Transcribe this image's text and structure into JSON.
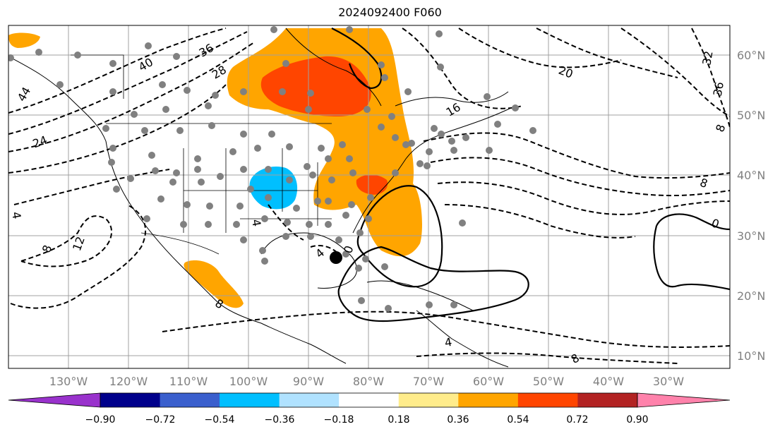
{
  "title": "2024092400 F060",
  "map": {
    "lon_labels": [
      "130°W",
      "120°W",
      "110°W",
      "100°W",
      "90°W",
      "80°W",
      "70°W",
      "60°W",
      "50°W",
      "40°W",
      "30°W"
    ],
    "lat_labels": [
      "60°N",
      "50°N",
      "40°N",
      "30°N",
      "20°N",
      "10°N"
    ],
    "contour_labels": [
      "40",
      "36",
      "28",
      "44",
      "24",
      "16",
      "20",
      "32",
      "36",
      "8",
      "8",
      "4",
      "12",
      "8",
      "0",
      "4",
      "4",
      "8",
      "0",
      "8",
      "4"
    ],
    "grid": true,
    "colors": {
      "orange": "#FFA500",
      "red_orange": "#FF4500",
      "cyan": "#00BFFF",
      "marker_grey": "#808080",
      "center_marker": "#000000"
    }
  },
  "colorbar": {
    "ticks": [
      "−0.90",
      "−0.72",
      "−0.54",
      "−0.36",
      "−0.18",
      "0.18",
      "0.36",
      "0.54",
      "0.72",
      "0.90"
    ],
    "colors": [
      "#9932CC",
      "#00008B",
      "#3A5FCD",
      "#00BFFF",
      "#B0E2FF",
      "#FFFFFF",
      "#FFEC8B",
      "#FFA500",
      "#FF4500",
      "#B22222",
      "#FF82AB"
    ],
    "extend": "both"
  }
}
